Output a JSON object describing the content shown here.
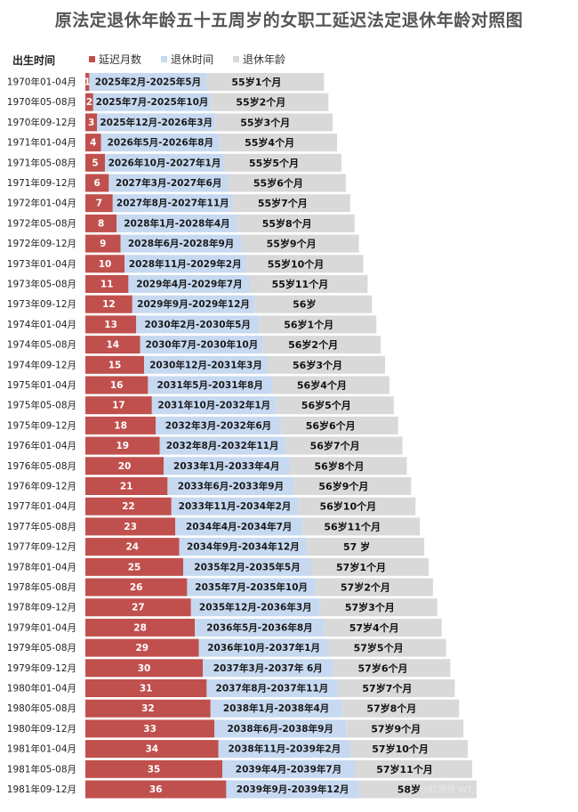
{
  "title": "原法定退休年龄五十五周岁的女职工延迟法定退休年龄对照图",
  "category_header": "出生时间",
  "watermark": "小红书号 WT...",
  "colors": {
    "delay": "#c0504d",
    "time": "#c6d9f1",
    "age": "#d9d9d9"
  },
  "chart_data": {
    "type": "bar",
    "stacked": true,
    "orientation": "horizontal",
    "legend": [
      "延迟月数",
      "退休时间",
      "退休年龄"
    ],
    "legend_position": "top",
    "categories": [
      "1970年01-04月",
      "1970年05-08月",
      "1970年09-12月",
      "1971年01-04月",
      "1971年05-08月",
      "1971年09-12月",
      "1972年01-04月",
      "1972年05-08月",
      "1972年09-12月",
      "1973年01-04月",
      "1973年05-08月",
      "1973年09-12月",
      "1974年01-04月",
      "1974年05-08月",
      "1974年09-12月",
      "1975年01-04月",
      "1975年05-08月",
      "1975年09-12月",
      "1976年01-04月",
      "1976年05-08月",
      "1976年09-12月",
      "1977年01-04月",
      "1977年05-08月",
      "1977年09-12月",
      "1978年01-04月",
      "1978年05-08月",
      "1978年09-12月",
      "1979年01-04月",
      "1979年05-08月",
      "1979年09-12月",
      "1980年01-04月",
      "1980年05-08月",
      "1980年09-12月",
      "1981年01-04月",
      "1981年05-08月",
      "1981年09-12月"
    ],
    "delay_months": [
      1,
      2,
      3,
      4,
      5,
      6,
      7,
      8,
      9,
      10,
      11,
      12,
      13,
      14,
      15,
      16,
      17,
      18,
      19,
      20,
      21,
      22,
      23,
      24,
      25,
      26,
      27,
      28,
      29,
      30,
      31,
      32,
      33,
      34,
      35,
      36
    ],
    "retire_time": [
      "2025年2月-2025年5月",
      "2025年7月-2025年10月",
      "2025年12月-2026年3月",
      "2026年5月-2026年8月",
      "2026年10月-2027年1月",
      "2027年3月-2027年6月",
      "2027年8月-2027年11月",
      "2028年1月-2028年4月",
      "2028年6月-2028年9月",
      "2028年11月-2029年2月",
      "2029年4月-2029年7月",
      "2029年9月-2029年12月",
      "2030年2月-2030年5月",
      "2030年7月-2030年10月",
      "2030年12月-2031年3月",
      "2031年5月-2031年8月",
      "2031年10月-2032年1月",
      "2032年3月-2032年6月",
      "2032年8月-2032年11月",
      "2033年1月-2033年4月",
      "2033年6月-2033年9月",
      "2033年11月-2034年2月",
      "2034年4月-2034年7月",
      "2034年9月-2034年12月",
      "2035年2月-2035年5月",
      "2035年7月-2035年10月",
      "2035年12月-2036年3月",
      "2036年5月-2036年8月",
      "2036年10月-2037年1月",
      "2037年3月-2037年 6月",
      "2037年8月-2037年11月",
      "2038年1月-2038年4月",
      "2038年6月-2038年9月",
      "2038年11月-2039年2月",
      "2039年4月-2039年7月",
      "2039年9月-2039年12月"
    ],
    "retire_age": [
      "55岁1个月",
      "55岁2个月",
      "55岁3个月",
      "55岁4个月",
      "55岁5个月",
      "55岁6个月",
      "55岁7个月",
      "55岁8个月",
      "55岁9个月",
      "55岁10个月",
      "55岁11个月",
      "56岁",
      "56岁1个月",
      "56岁2个月",
      "56岁3个月",
      "56岁4个月",
      "56岁5个月",
      "56岁6个月",
      "56岁7个月",
      "56岁8个月",
      "56岁9个月",
      "56岁10个月",
      "56岁11个月",
      "57 岁",
      "57岁1个月",
      "57岁2个月",
      "57岁3个月",
      "57岁4个月",
      "57岁5个月",
      "57岁6个月",
      "57岁7个月",
      "57岁8个月",
      "57岁9个月",
      "57岁10个月",
      "57岁11个月",
      "58岁"
    ]
  }
}
